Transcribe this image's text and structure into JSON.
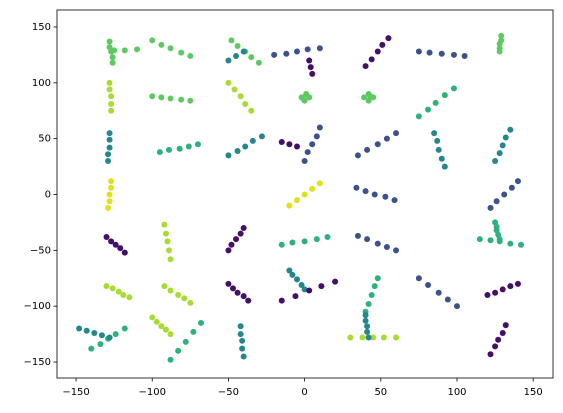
{
  "chart_data": {
    "type": "scatter",
    "xlim": [
      -162.5,
      163
    ],
    "ylim": [
      -164.3,
      165.2
    ],
    "xticks": [
      {
        "value": -150,
        "label": "−150"
      },
      {
        "value": -100,
        "label": "−100"
      },
      {
        "value": -50,
        "label": "−50"
      },
      0,
      50,
      100,
      150
    ],
    "yticks": [
      {
        "value": -150,
        "label": "−150"
      },
      {
        "value": -100,
        "label": "−100"
      },
      {
        "value": -50,
        "label": "−50"
      },
      0,
      50,
      100,
      150
    ],
    "series": [
      {
        "color": "#dde318",
        "x": [
          -127,
          -127,
          -128,
          -128,
          -129,
          -10,
          -5,
          0,
          5,
          10
        ],
        "y": [
          12,
          6,
          0,
          -6,
          -12,
          -10,
          -5,
          0,
          5,
          10
        ]
      },
      {
        "color": "#a8db34",
        "x": [
          -128,
          -128,
          -127,
          -127,
          -127,
          -92,
          -91,
          -90,
          -89,
          -88,
          -130,
          -126,
          -122,
          -119,
          -115,
          -92,
          -88,
          -83,
          -79,
          -75,
          -100,
          -97,
          -94,
          -91,
          -88,
          -50,
          -46,
          -42,
          -39,
          -35,
          30,
          38,
          45,
          52,
          60
        ],
        "y": [
          100,
          94,
          88,
          81,
          75,
          -27,
          -35,
          -42,
          -50,
          -58,
          -82,
          -84,
          -87,
          -90,
          -92,
          -82,
          -86,
          -90,
          -93,
          -97,
          -110,
          -114,
          -118,
          -121,
          -125,
          100,
          94,
          88,
          81,
          75,
          -128,
          -128,
          -128,
          -128,
          -128
        ]
      },
      {
        "color": "#5ec962",
        "x": [
          -128,
          -128,
          -127,
          -126,
          -126,
          -125,
          -118,
          -110,
          -100,
          -94,
          -88,
          -81,
          -75,
          -100,
          -94,
          -88,
          -81,
          -75,
          -48,
          -44,
          -39,
          -35,
          -30,
          -2,
          1,
          3,
          0,
          -1,
          39,
          42,
          45,
          42,
          43,
          129,
          129,
          128,
          128,
          128
        ],
        "y": [
          137,
          132,
          128,
          123,
          118,
          129,
          129,
          130,
          88,
          87,
          86,
          85,
          84,
          138,
          134,
          131,
          127,
          124,
          138,
          133,
          128,
          123,
          118,
          87,
          90,
          87,
          84,
          86,
          87,
          90,
          87,
          84,
          88,
          142,
          138,
          135,
          131,
          128
        ]
      },
      {
        "color": "#2db27d",
        "x": [
          -140,
          -134,
          -129,
          -124,
          -118,
          -88,
          -83,
          -78,
          -73,
          -68,
          -15,
          -8,
          0,
          8,
          15,
          40,
          42,
          44,
          46,
          48,
          75,
          81,
          86,
          92,
          98,
          115,
          122,
          128,
          135,
          142,
          125,
          126,
          126,
          127,
          128,
          -95,
          -89,
          -82,
          -76,
          -70
        ],
        "y": [
          -138,
          -134,
          -129,
          -125,
          -120,
          -148,
          -140,
          -132,
          -123,
          -115,
          -45,
          -43,
          -42,
          -40,
          -38,
          -105,
          -98,
          -90,
          -82,
          -75,
          70,
          76,
          82,
          89,
          95,
          -40,
          -41,
          -42,
          -44,
          -45,
          -25,
          -29,
          -32,
          -36,
          -40,
          38,
          40,
          41,
          43,
          45
        ]
      },
      {
        "color": "#24868e",
        "x": [
          -128,
          -128,
          -128,
          -129,
          -129,
          -148,
          -143,
          -138,
          -133,
          -128,
          -50,
          -44,
          -39,
          -34,
          -28,
          -42,
          -42,
          -41,
          -41,
          -40,
          -10,
          -8,
          -5,
          -2,
          0,
          40,
          40,
          41,
          41,
          42,
          85,
          87,
          88,
          90,
          92,
          125,
          128,
          130,
          132,
          135,
          -50,
          -45,
          -40
        ],
        "y": [
          55,
          49,
          42,
          36,
          30,
          -120,
          -122,
          -124,
          -126,
          -128,
          35,
          39,
          43,
          48,
          52,
          -118,
          -125,
          -131,
          -138,
          -145,
          -68,
          -72,
          -76,
          -81,
          -85,
          -108,
          -113,
          -118,
          -123,
          -128,
          55,
          48,
          40,
          32,
          25,
          30,
          37,
          44,
          51,
          58,
          120,
          124,
          128
        ]
      },
      {
        "color": "#3b528b",
        "x": [
          -20,
          -12,
          -5,
          2,
          10,
          0,
          2,
          5,
          8,
          10,
          35,
          41,
          48,
          54,
          60,
          34,
          40,
          46,
          53,
          59,
          35,
          41,
          48,
          54,
          60,
          75,
          82,
          90,
          98,
          105,
          75,
          81,
          88,
          94,
          100,
          122,
          126,
          131,
          136,
          140
        ],
        "y": [
          125,
          126,
          128,
          130,
          131,
          30,
          38,
          45,
          52,
          60,
          35,
          40,
          45,
          50,
          55,
          6,
          3,
          0,
          -2,
          -5,
          -37,
          -40,
          -44,
          -47,
          -50,
          128,
          127,
          126,
          125,
          124,
          -75,
          -81,
          -88,
          -94,
          -100,
          -12,
          -6,
          0,
          6,
          12
        ]
      },
      {
        "color": "#440f66",
        "x": [
          -130,
          -127,
          -124,
          -121,
          -118,
          -50,
          -48,
          -45,
          -42,
          -40,
          -50,
          -47,
          -44,
          -40,
          -37,
          3,
          4,
          5,
          -15,
          -10,
          -5,
          -15,
          -6,
          3,
          11,
          20,
          40,
          44,
          48,
          51,
          55,
          120,
          125,
          130,
          135,
          140,
          122,
          125,
          127,
          130,
          132
        ],
        "y": [
          -38,
          -42,
          -45,
          -48,
          -52,
          -50,
          -45,
          -40,
          -35,
          -30,
          -80,
          -84,
          -88,
          -91,
          -95,
          120,
          114,
          108,
          47,
          45,
          43,
          -95,
          -91,
          -86,
          -82,
          -78,
          115,
          121,
          128,
          134,
          140,
          -90,
          -88,
          -85,
          -82,
          -80,
          -143,
          -136,
          -130,
          -124,
          -117
        ]
      }
    ]
  }
}
